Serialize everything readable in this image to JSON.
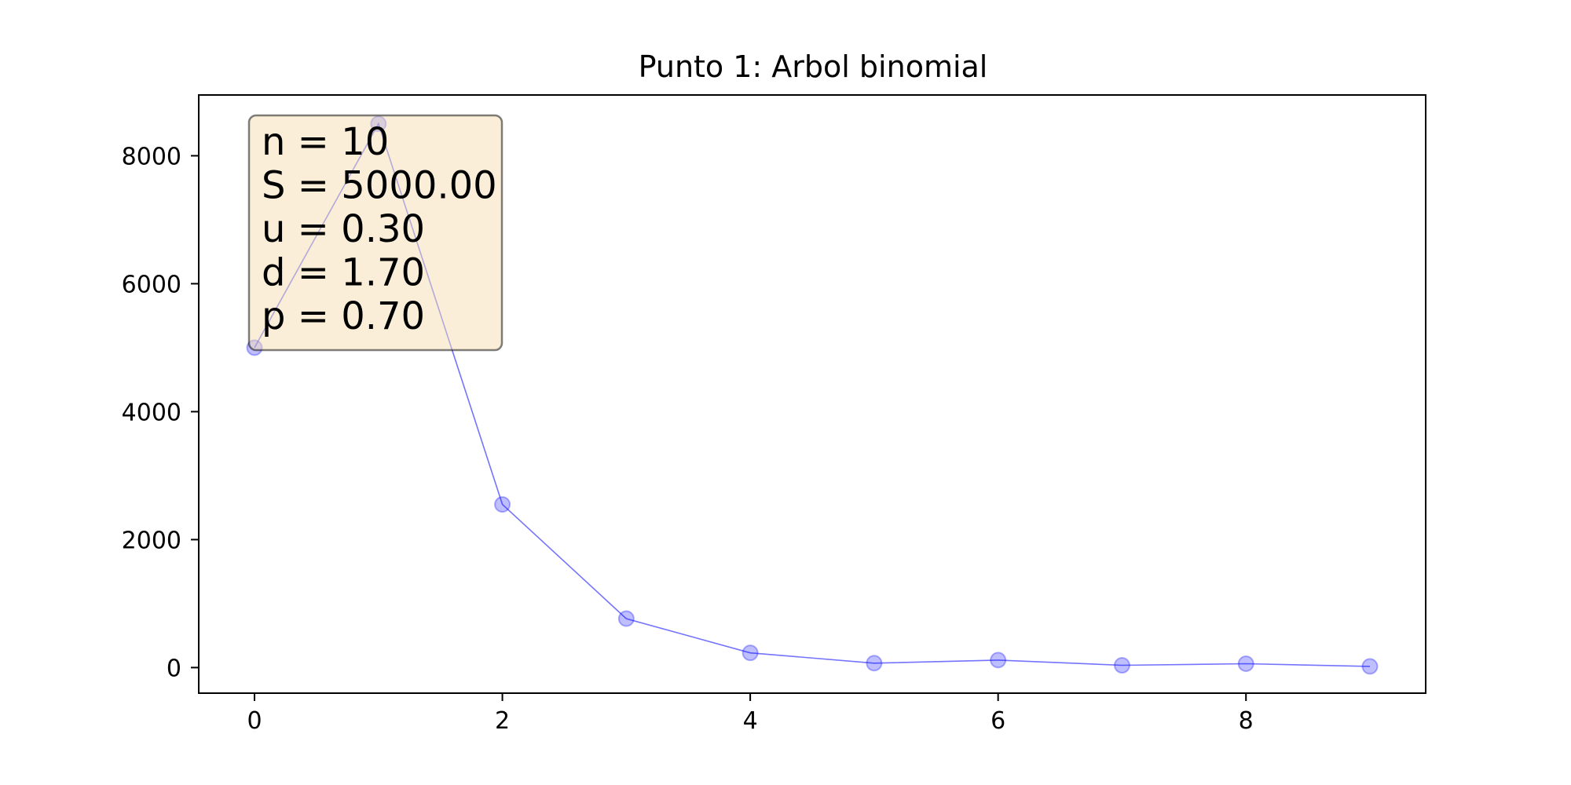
{
  "chart_data": {
    "type": "line",
    "title": "Punto 1: Arbol binomial",
    "xlabel": "",
    "ylabel": "",
    "xlim": [
      -0.45,
      9.45
    ],
    "ylim": [
      -400,
      8950
    ],
    "x_ticks": [
      0,
      2,
      4,
      6,
      8
    ],
    "x_tick_labels": [
      "0",
      "2",
      "4",
      "6",
      "8"
    ],
    "y_ticks": [
      0,
      2000,
      4000,
      6000,
      8000
    ],
    "y_tick_labels": [
      "0",
      "2000",
      "4000",
      "6000",
      "8000"
    ],
    "grid": false,
    "series": [
      {
        "name": "",
        "color": "#0000ff",
        "marker": "circle",
        "x": [
          0,
          1,
          2,
          3,
          4,
          5,
          6,
          7,
          8,
          9
        ],
        "values": [
          5000,
          8500,
          2550,
          765,
          230,
          69,
          117,
          35,
          60,
          18
        ]
      }
    ],
    "annotation": {
      "lines": [
        "n = 10",
        "S = 5000.00",
        "u = 0.30",
        "d = 1.70",
        "p = 0.70"
      ],
      "background": "#f5deb3",
      "border": "#000000"
    }
  }
}
